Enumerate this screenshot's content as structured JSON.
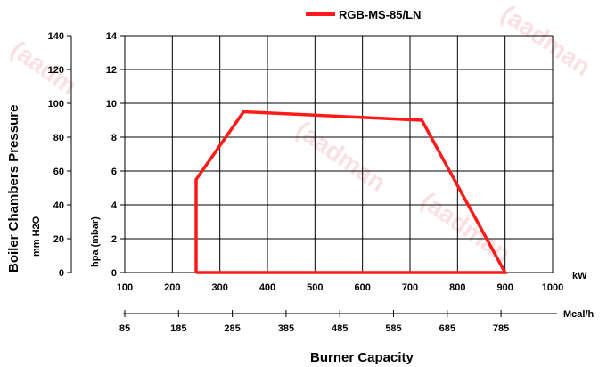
{
  "chart_data": {
    "type": "line",
    "legend": {
      "position": "top",
      "entries": [
        "RGB-MS-85/LN"
      ]
    },
    "series": [
      {
        "name": "RGB-MS-85/LN",
        "color": "#ff1a1a",
        "points": [
          [
            250,
            0
          ],
          [
            250,
            5.5
          ],
          [
            350,
            9.5
          ],
          [
            725,
            9.0
          ],
          [
            900,
            0
          ],
          [
            250,
            0
          ]
        ]
      }
    ],
    "x": {
      "label": "kW",
      "min": 100,
      "max": 1000,
      "ticks": [
        "100",
        "200",
        "300",
        "400",
        "500",
        "600",
        "700",
        "800",
        "900",
        "1000"
      ]
    },
    "x2": {
      "label": "Mcal/h",
      "ticks": [
        "85",
        "185",
        "285",
        "385",
        "485",
        "585",
        "685",
        "785"
      ]
    },
    "y": {
      "label": "hpa (mbar)",
      "min": 0,
      "max": 14,
      "ticks": [
        "0",
        "2",
        "4",
        "6",
        "8",
        "10",
        "12",
        "14"
      ]
    },
    "y2": {
      "label": "mm H2O",
      "ticks": [
        "0",
        "20",
        "40",
        "60",
        "80",
        "100",
        "120",
        "140"
      ]
    },
    "ylabel": "Boiler Chambers Pressure",
    "xlabel": "Burner Capacity",
    "grid": true
  }
}
